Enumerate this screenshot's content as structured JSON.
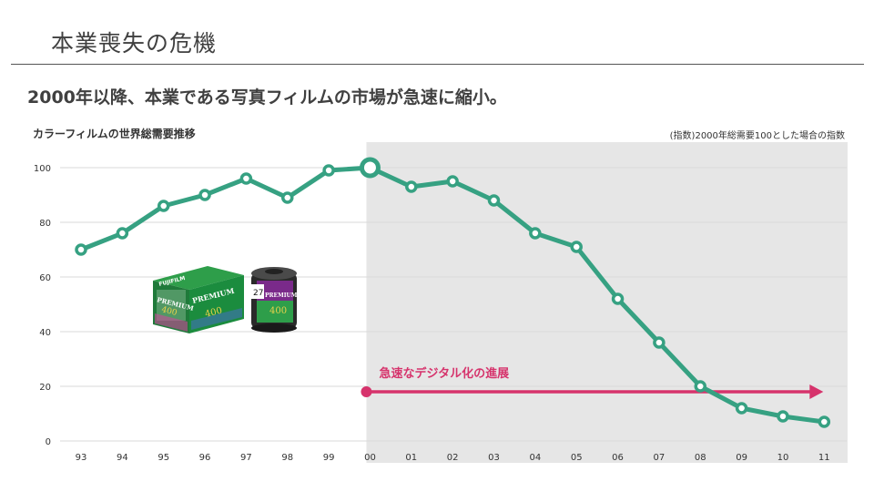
{
  "header": {
    "title": "本業喪失の危機",
    "headline": "2000年以降、本業である写真フィルムの市場が急速に縮小。"
  },
  "chart_data": {
    "type": "line",
    "title": "カラーフィルムの世界総需要推移",
    "note": "(指数)2000年総需要100とした場合の指数",
    "categories": [
      "93",
      "94",
      "95",
      "96",
      "97",
      "98",
      "99",
      "00",
      "01",
      "02",
      "03",
      "04",
      "05",
      "06",
      "07",
      "08",
      "09",
      "10",
      "11"
    ],
    "series": [
      {
        "values": [
          70,
          76,
          86,
          90,
          96,
          89,
          99,
          100,
          93,
          95,
          88,
          76,
          71,
          52,
          36,
          20,
          12,
          9,
          7
        ]
      }
    ],
    "ylim": [
      0,
      100
    ],
    "yticks": [
      0,
      20,
      40,
      60,
      80,
      100
    ],
    "grid": true,
    "highlight": {
      "from": "00",
      "to": "11"
    },
    "annotation": {
      "text": "急速なデジタル化の進展",
      "start": "00",
      "end": "11",
      "y": 18
    },
    "colors": {
      "line": "#36a182",
      "arrow": "#d6336c",
      "shade": "#e6e6e6",
      "grid": "#d9d9d9"
    }
  },
  "film": {
    "brand": "FUJIFILM",
    "product": "PREMIUM",
    "iso": "400",
    "exposures": "27"
  }
}
